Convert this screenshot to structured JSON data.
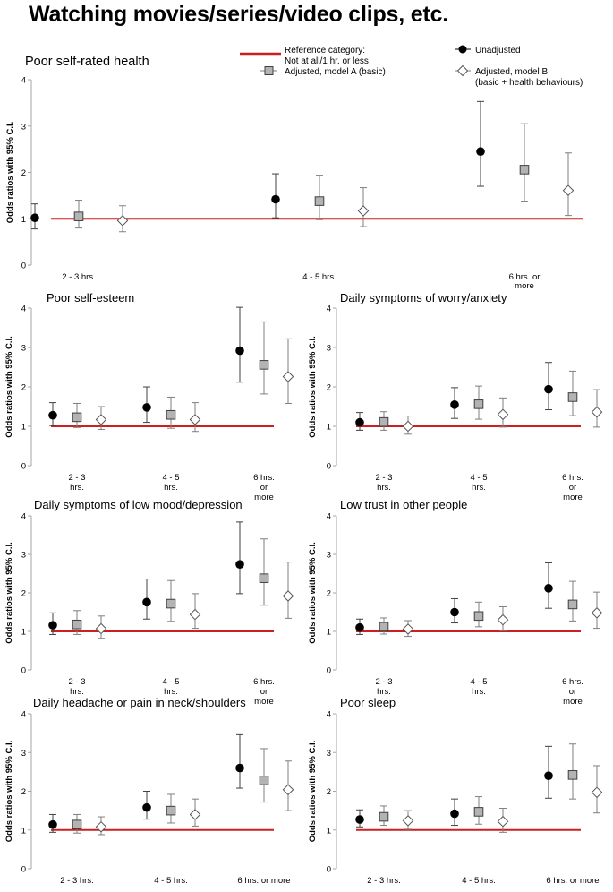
{
  "title": "Watching movies/series/video clips, etc.",
  "ylabel": "Odds ratios with 95% C.I.",
  "legend": {
    "reference": "Reference category:",
    "reference_sub": "Not at all/1 hr. or less",
    "unadjusted": "Unadjusted",
    "model_a": "Adjusted, model A (basic)",
    "model_b": "Adjusted, model B",
    "model_b_sub": "(basic + health behaviours)"
  },
  "colors": {
    "reference_line": "#cc1f1f",
    "model_a_fill": "#b3b3b3",
    "axis": "#a6a6a6",
    "errorbar": "#7f7f7f"
  },
  "chart_data": [
    {
      "type": "scatter",
      "title": "Poor self-rated health",
      "ylabel": "Odds ratios with 95% C.I.",
      "ylim": [
        0,
        4
      ],
      "yticks": [
        0,
        1,
        2,
        3,
        4
      ],
      "categories": [
        "2 - 3 hrs.",
        "4 - 5 hrs.",
        "6 hrs. or more"
      ],
      "category_lines": [
        [
          "2 - 3 hrs."
        ],
        [
          "4 - 5 hrs."
        ],
        [
          "6 hrs. or",
          "more"
        ]
      ],
      "reference_value": 1,
      "series": [
        {
          "name": "Unadjusted",
          "values": [
            1.02,
            1.42,
            2.45
          ],
          "ci_low": [
            0.78,
            1.02,
            1.7
          ],
          "ci_high": [
            1.32,
            1.97,
            3.53
          ]
        },
        {
          "name": "Adjusted, model A (basic)",
          "values": [
            1.05,
            1.38,
            2.06
          ],
          "ci_low": [
            0.8,
            0.98,
            1.38
          ],
          "ci_high": [
            1.4,
            1.94,
            3.05
          ]
        },
        {
          "name": "Adjusted, model B (basic + health behaviours)",
          "values": [
            0.96,
            1.17,
            1.61
          ],
          "ci_low": [
            0.72,
            0.83,
            1.07
          ],
          "ci_high": [
            1.28,
            1.67,
            2.42
          ]
        }
      ]
    },
    {
      "type": "scatter",
      "title": "Poor self-esteem",
      "ylabel": "Odds ratios with 95% C.I.",
      "ylim": [
        0,
        4
      ],
      "yticks": [
        0,
        1,
        2,
        3,
        4
      ],
      "categories": [
        "2 - 3 hrs.",
        "4 - 5 hrs.",
        "6 hrs. or more"
      ],
      "category_lines": [
        [
          "2 - 3",
          "hrs."
        ],
        [
          "4 - 5",
          "hrs."
        ],
        [
          "6 hrs.",
          "or",
          "more"
        ]
      ],
      "reference_value": 1,
      "series": [
        {
          "name": "Unadjusted",
          "values": [
            1.28,
            1.48,
            2.92
          ],
          "ci_low": [
            1.02,
            1.1,
            2.12
          ],
          "ci_high": [
            1.6,
            2.0,
            4.02
          ]
        },
        {
          "name": "Adjusted, model A (basic)",
          "values": [
            1.23,
            1.29,
            2.56
          ],
          "ci_low": [
            0.97,
            0.95,
            1.82
          ],
          "ci_high": [
            1.58,
            1.74,
            3.65
          ]
        },
        {
          "name": "Adjusted, model B (basic + health behaviours)",
          "values": [
            1.17,
            1.17,
            2.26
          ],
          "ci_low": [
            0.92,
            0.87,
            1.58
          ],
          "ci_high": [
            1.5,
            1.6,
            3.22
          ]
        }
      ]
    },
    {
      "type": "scatter",
      "title": "Daily symptoms of worry/anxiety",
      "ylabel": "Odds ratios with 95% C.I.",
      "ylim": [
        0,
        4
      ],
      "yticks": [
        0,
        1,
        2,
        3,
        4
      ],
      "categories": [
        "2 - 3 hrs.",
        "4 - 5 hrs.",
        "6 hrs. or more"
      ],
      "category_lines": [
        [
          "2 - 3",
          "hrs."
        ],
        [
          "4 - 5",
          "hrs."
        ],
        [
          "6 hrs.",
          "or",
          "more"
        ]
      ],
      "reference_value": 1,
      "series": [
        {
          "name": "Unadjusted",
          "values": [
            1.1,
            1.55,
            1.94
          ],
          "ci_low": [
            0.9,
            1.2,
            1.42
          ],
          "ci_high": [
            1.35,
            1.98,
            2.62
          ]
        },
        {
          "name": "Adjusted, model A (basic)",
          "values": [
            1.11,
            1.56,
            1.74
          ],
          "ci_low": [
            0.9,
            1.18,
            1.27
          ],
          "ci_high": [
            1.37,
            2.02,
            2.4
          ]
        },
        {
          "name": "Adjusted, model B (basic + health behaviours)",
          "values": [
            1.0,
            1.3,
            1.36
          ],
          "ci_low": [
            0.8,
            0.98,
            0.98
          ],
          "ci_high": [
            1.26,
            1.72,
            1.93
          ]
        }
      ]
    },
    {
      "type": "scatter",
      "title": "Daily symptoms of low mood/depression",
      "ylabel": "Odds ratios with 95% C.I.",
      "ylim": [
        0,
        4
      ],
      "yticks": [
        0,
        1,
        2,
        3,
        4
      ],
      "categories": [
        "2 - 3 hrs.",
        "4 - 5 hrs.",
        "6 hrs. or more"
      ],
      "category_lines": [
        [
          "2 - 3",
          "hrs."
        ],
        [
          "4 - 5",
          "hrs."
        ],
        [
          "6 hrs.",
          "or",
          "more"
        ]
      ],
      "reference_value": 1,
      "series": [
        {
          "name": "Unadjusted",
          "values": [
            1.16,
            1.76,
            2.74
          ],
          "ci_low": [
            0.92,
            1.32,
            1.98
          ],
          "ci_high": [
            1.48,
            2.36,
            3.84
          ]
        },
        {
          "name": "Adjusted, model A (basic)",
          "values": [
            1.18,
            1.72,
            2.38
          ],
          "ci_low": [
            0.92,
            1.26,
            1.68
          ],
          "ci_high": [
            1.54,
            2.32,
            3.4
          ]
        },
        {
          "name": "Adjusted, model B (basic + health behaviours)",
          "values": [
            1.07,
            1.44,
            1.92
          ],
          "ci_low": [
            0.82,
            1.08,
            1.34
          ],
          "ci_high": [
            1.4,
            1.98,
            2.8
          ]
        }
      ]
    },
    {
      "type": "scatter",
      "title": "Low trust in other people",
      "ylabel": "Odds ratios with 95% C.I.",
      "ylim": [
        0,
        4
      ],
      "yticks": [
        0,
        1,
        2,
        3,
        4
      ],
      "categories": [
        "2 - 3 hrs.",
        "4 - 5 hrs.",
        "6 hrs. or more"
      ],
      "category_lines": [
        [
          "2 - 3",
          "hrs."
        ],
        [
          "4 - 5",
          "hrs."
        ],
        [
          "6 hrs.",
          "or",
          "more"
        ]
      ],
      "reference_value": 1,
      "series": [
        {
          "name": "Unadjusted",
          "values": [
            1.1,
            1.5,
            2.12
          ],
          "ci_low": [
            0.92,
            1.22,
            1.6
          ],
          "ci_high": [
            1.32,
            1.85,
            2.78
          ]
        },
        {
          "name": "Adjusted, model A (basic)",
          "values": [
            1.12,
            1.4,
            1.7
          ],
          "ci_low": [
            0.93,
            1.12,
            1.27
          ],
          "ci_high": [
            1.35,
            1.76,
            2.3
          ]
        },
        {
          "name": "Adjusted, model B (basic + health behaviours)",
          "values": [
            1.06,
            1.3,
            1.48
          ],
          "ci_low": [
            0.87,
            1.02,
            1.08
          ],
          "ci_high": [
            1.28,
            1.64,
            2.02
          ]
        }
      ]
    },
    {
      "type": "scatter",
      "title": "Daily headache or pain in neck/shoulders",
      "ylabel": "Odds ratios with 95% C.I.",
      "ylim": [
        0,
        4
      ],
      "yticks": [
        0,
        1,
        2,
        3,
        4
      ],
      "categories": [
        "2 - 3 hrs.",
        "4 - 5 hrs.",
        "6 hrs. or more"
      ],
      "category_lines": [
        [
          "2 - 3 hrs."
        ],
        [
          "4 - 5 hrs."
        ],
        [
          "6 hrs. or more"
        ]
      ],
      "reference_value": 1,
      "series": [
        {
          "name": "Unadjusted",
          "values": [
            1.14,
            1.58,
            2.6
          ],
          "ci_low": [
            0.94,
            1.28,
            2.08
          ],
          "ci_high": [
            1.4,
            2.0,
            3.46
          ]
        },
        {
          "name": "Adjusted, model A (basic)",
          "values": [
            1.14,
            1.5,
            2.28
          ],
          "ci_low": [
            0.92,
            1.18,
            1.72
          ],
          "ci_high": [
            1.4,
            1.92,
            3.1
          ]
        },
        {
          "name": "Adjusted, model B (basic + health behaviours)",
          "values": [
            1.08,
            1.4,
            2.04
          ],
          "ci_low": [
            0.88,
            1.1,
            1.5
          ],
          "ci_high": [
            1.34,
            1.8,
            2.78
          ]
        }
      ]
    },
    {
      "type": "scatter",
      "title": "Poor sleep",
      "ylabel": "Odds ratios with 95% C.I.",
      "ylim": [
        0,
        4
      ],
      "yticks": [
        0,
        1,
        2,
        3,
        4
      ],
      "categories": [
        "2 - 3 hrs.",
        "4 - 5 hrs.",
        "6 hrs. or more"
      ],
      "category_lines": [
        [
          "2 - 3 hrs."
        ],
        [
          "4 - 5 hrs."
        ],
        [
          "6 hrs. or more"
        ]
      ],
      "reference_value": 1,
      "series": [
        {
          "name": "Unadjusted",
          "values": [
            1.27,
            1.42,
            2.4
          ],
          "ci_low": [
            1.08,
            1.12,
            1.82
          ],
          "ci_high": [
            1.52,
            1.8,
            3.16
          ]
        },
        {
          "name": "Adjusted, model A (basic)",
          "values": [
            1.34,
            1.47,
            2.42
          ],
          "ci_low": [
            1.12,
            1.15,
            1.8
          ],
          "ci_high": [
            1.62,
            1.86,
            3.22
          ]
        },
        {
          "name": "Adjusted, model B (basic + health behaviours)",
          "values": [
            1.24,
            1.22,
            1.97
          ],
          "ci_low": [
            1.02,
            0.94,
            1.44
          ],
          "ci_high": [
            1.5,
            1.56,
            2.66
          ]
        }
      ]
    }
  ]
}
